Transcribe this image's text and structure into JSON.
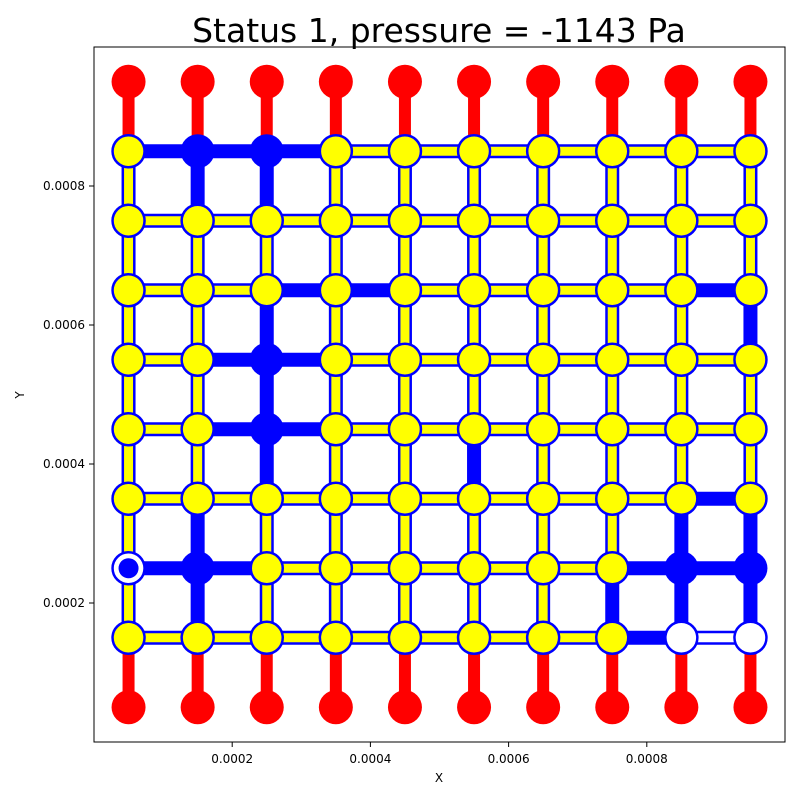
{
  "chart_data": {
    "type": "scatter",
    "title": "Status 1, pressure = -1143 Pa",
    "xlabel": "X",
    "ylabel": "Y",
    "xlim": [
      0.0,
      0.001
    ],
    "ylim": [
      0.0,
      0.001
    ],
    "x_ticks": [
      0.0002,
      0.0004,
      0.0006,
      0.0008
    ],
    "x_tick_labels": [
      "0.0002",
      "0.0004",
      "0.0006",
      "0.0008"
    ],
    "y_ticks": [
      0.0002,
      0.0004,
      0.0006,
      0.0008
    ],
    "y_tick_labels": [
      "0.0002",
      "0.0004",
      "0.0006",
      "0.0008"
    ],
    "grid": false,
    "node_x": [
      5e-05,
      0.00015,
      0.00025,
      0.00035,
      0.00045,
      0.00055,
      0.00065,
      0.00075,
      0.00085,
      0.00095
    ],
    "node_y": [
      0.00085,
      0.00075,
      0.00065,
      0.00055,
      0.00045,
      0.00035,
      0.00025,
      0.00015
    ],
    "reservoir_top_y": 0.00095,
    "reservoir_bottom_y": 5e-05,
    "colors": {
      "reservoir": "#ff0000",
      "phase_a": "#0000ff",
      "phase_b": "#ffff00",
      "empty": "#ffffff",
      "outline": "#0000ff"
    },
    "node_states_rows_top_to_bottom": [
      [
        "Y",
        "B",
        "B",
        "Y",
        "Y",
        "Y",
        "Y",
        "Y",
        "Y",
        "Y"
      ],
      [
        "Y",
        "Y",
        "Y",
        "Y",
        "Y",
        "Y",
        "Y",
        "Y",
        "Y",
        "Y"
      ],
      [
        "Y",
        "Y",
        "Y",
        "Y",
        "Y",
        "Y",
        "Y",
        "Y",
        "Y",
        "Y"
      ],
      [
        "Y",
        "Y",
        "B",
        "Y",
        "Y",
        "Y",
        "Y",
        "Y",
        "Y",
        "Y"
      ],
      [
        "Y",
        "Y",
        "B",
        "Y",
        "Y",
        "Y",
        "Y",
        "Y",
        "Y",
        "Y"
      ],
      [
        "Y",
        "Y",
        "Y",
        "Y",
        "Y",
        "Y",
        "Y",
        "Y",
        "Y",
        "Y"
      ],
      [
        "Bs",
        "B",
        "Y",
        "Y",
        "Y",
        "Y",
        "Y",
        "Y",
        "B",
        "B"
      ],
      [
        "Y",
        "Y",
        "Y",
        "Y",
        "Y",
        "Y",
        "Y",
        "Y",
        "W",
        "W"
      ]
    ],
    "horizontal_throats_rows_top_to_bottom": [
      [
        "B",
        "B",
        "B",
        "Y",
        "Y",
        "Y",
        "Y",
        "Y",
        "Y"
      ],
      [
        "Y",
        "Y",
        "Y",
        "Y",
        "Y",
        "Y",
        "Y",
        "Y",
        "Y"
      ],
      [
        "Y",
        "Y",
        "B",
        "B",
        "Y",
        "Y",
        "Y",
        "Y",
        "B"
      ],
      [
        "Y",
        "B",
        "B",
        "Y",
        "Y",
        "Y",
        "Y",
        "Y",
        "Y"
      ],
      [
        "Y",
        "B",
        "B",
        "Y",
        "Y",
        "Y",
        "Y",
        "Y",
        "Y"
      ],
      [
        "Y",
        "Y",
        "Y",
        "Y",
        "Y",
        "Y",
        "Y",
        "Y",
        "B"
      ],
      [
        "B",
        "B",
        "Y",
        "Y",
        "Y",
        "Y",
        "Y",
        "B",
        "B"
      ],
      [
        "Y",
        "Y",
        "Y",
        "Y",
        "Y",
        "Y",
        "Y",
        "B",
        "W"
      ]
    ],
    "vertical_throats_top_to_bottom": [
      [
        "Y",
        "B",
        "B",
        "Y",
        "Y",
        "Y",
        "Y",
        "Y",
        "Y",
        "Y"
      ],
      [
        "Y",
        "Y",
        "Y",
        "Y",
        "Y",
        "Y",
        "Y",
        "Y",
        "Y",
        "Y"
      ],
      [
        "Y",
        "Y",
        "B",
        "Y",
        "Y",
        "Y",
        "Y",
        "Y",
        "Y",
        "B"
      ],
      [
        "Y",
        "Y",
        "B",
        "Y",
        "Y",
        "Y",
        "Y",
        "Y",
        "Y",
        "Y"
      ],
      [
        "Y",
        "Y",
        "B",
        "Y",
        "Y",
        "B",
        "Y",
        "Y",
        "Y",
        "Y"
      ],
      [
        "Y",
        "B",
        "Y",
        "Y",
        "Y",
        "Y",
        "Y",
        "Y",
        "B",
        "B"
      ],
      [
        "Y",
        "B",
        "Y",
        "Y",
        "Y",
        "Y",
        "Y",
        "B",
        "B",
        "B"
      ]
    ]
  }
}
